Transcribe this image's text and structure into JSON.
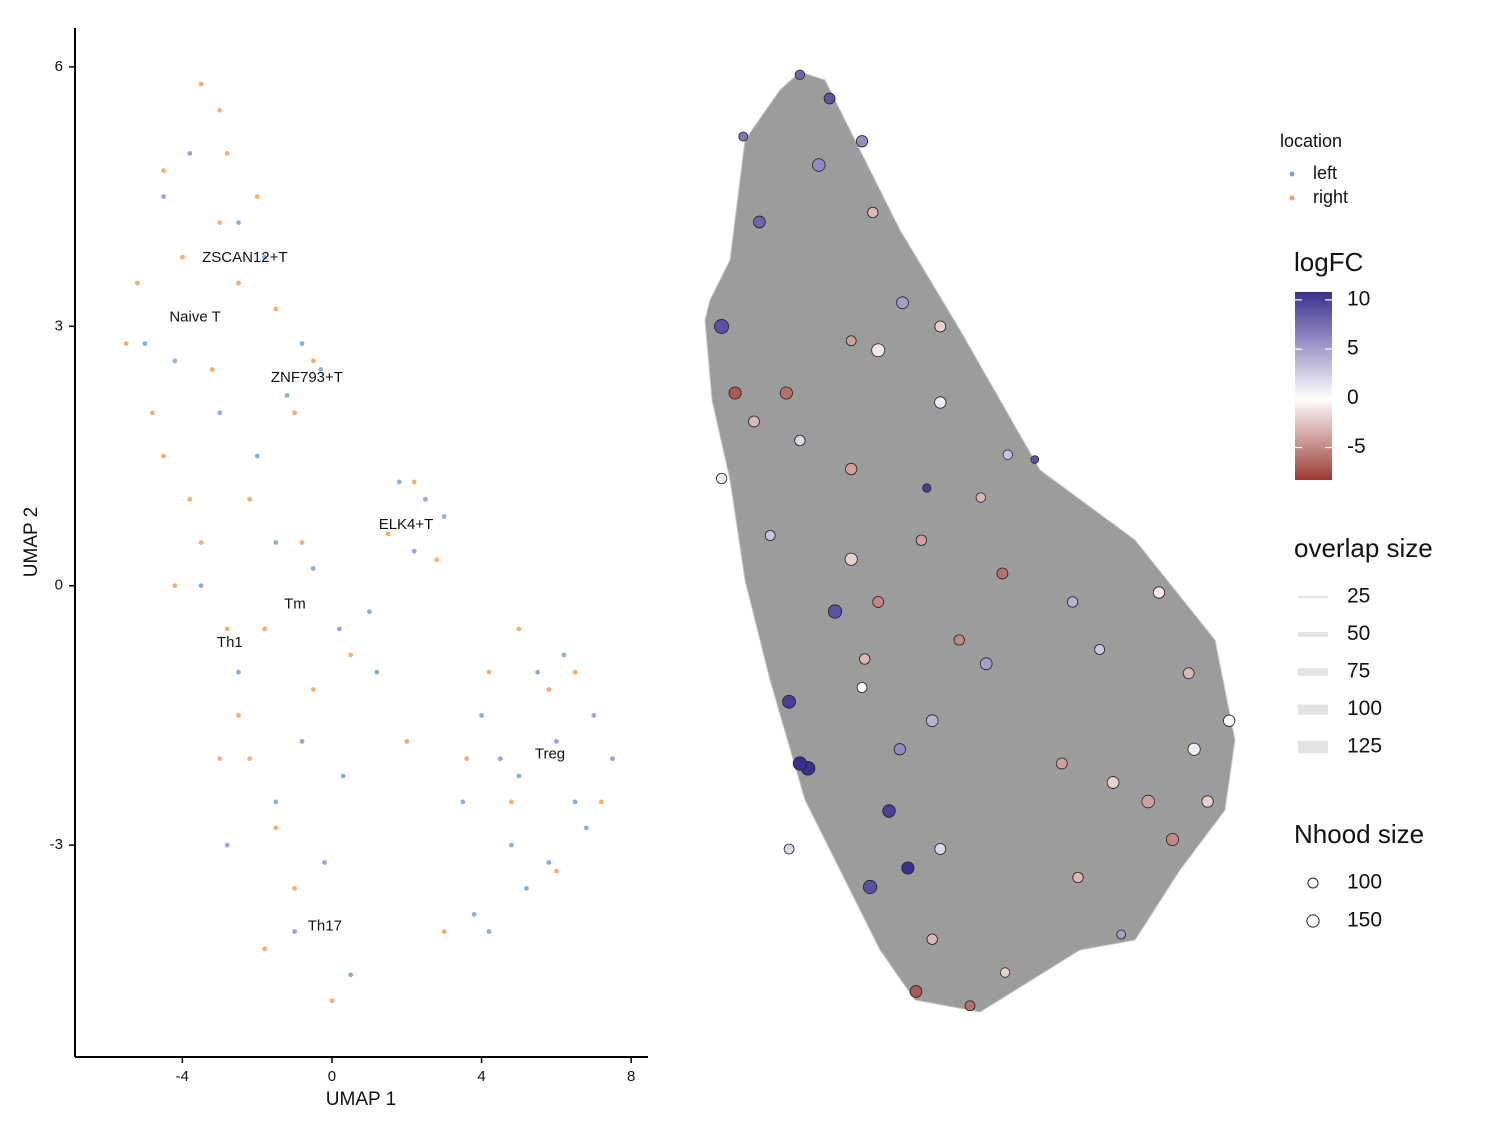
{
  "chart_data": [
    {
      "type": "scatter",
      "x_label": "UMAP 1",
      "y_label": "UMAP 2",
      "xlim": [
        -6.87,
        8.45
      ],
      "ylim": [
        -5.45,
        6.45
      ],
      "xticks": [
        -4,
        0,
        4,
        8
      ],
      "yticks": [
        -3,
        0,
        3,
        6
      ],
      "legend_title": "location",
      "series": [
        {
          "name": "left",
          "color": "#7b9fd4",
          "x": [
            -4.5,
            -3.8,
            -2.5,
            -1.8,
            -0.8,
            -0.3,
            -1.2,
            -2.0,
            -3.0,
            -4.2,
            -5.0,
            -1.5,
            -0.5,
            0.2,
            1.0,
            1.8,
            2.5,
            2.2,
            3.0,
            1.2,
            4.0,
            4.5,
            5.0,
            5.5,
            6.0,
            6.5,
            7.0,
            7.5,
            4.8,
            5.8,
            6.8,
            3.8,
            4.2,
            5.2,
            6.2,
            3.5,
            -0.2,
            0.5,
            -1.0,
            -1.5,
            -0.8,
            0.3,
            -2.5,
            -3.5,
            -2.8
          ],
          "values": [
            4.5,
            5.0,
            4.2,
            3.8,
            2.8,
            2.5,
            2.2,
            1.5,
            2.0,
            2.6,
            2.8,
            0.5,
            0.2,
            -0.5,
            -0.3,
            1.2,
            1.0,
            0.4,
            0.8,
            -1.0,
            -1.5,
            -2.0,
            -2.2,
            -1.0,
            -1.8,
            -2.5,
            -1.5,
            -2.0,
            -3.0,
            -3.2,
            -2.8,
            -3.8,
            -4.0,
            -3.5,
            -0.8,
            -2.5,
            -3.2,
            -4.5,
            -4.0,
            -2.5,
            -1.8,
            -2.2,
            -1.0,
            0.0,
            -3.0
          ]
        },
        {
          "name": "right",
          "color": "#f5a05a",
          "x": [
            -3.5,
            -3.0,
            -2.8,
            -4.5,
            -5.2,
            -5.5,
            -4.0,
            -2.0,
            -1.5,
            -2.5,
            -3.2,
            -4.8,
            -3.8,
            -2.2,
            -1.0,
            -0.5,
            -3.5,
            -4.2,
            -2.8,
            -1.8,
            -0.8,
            -2.5,
            -3.0,
            -1.5,
            -0.5,
            0.5,
            -1.0,
            -1.8,
            0.0,
            1.5,
            2.2,
            2.8,
            5.0,
            5.8,
            6.5,
            4.2,
            3.6,
            7.2,
            4.8,
            3.0,
            2.0,
            6.0,
            -2.2,
            -4.5,
            -3.0
          ],
          "values": [
            5.8,
            5.5,
            5.0,
            4.8,
            3.5,
            2.8,
            3.8,
            4.5,
            3.2,
            3.5,
            2.5,
            2.0,
            1.0,
            1.0,
            2.0,
            2.6,
            0.5,
            0.0,
            -0.5,
            -0.5,
            0.5,
            -1.5,
            -2.0,
            -2.8,
            -1.2,
            -0.8,
            -3.5,
            -4.2,
            -4.8,
            0.6,
            1.2,
            0.3,
            -0.5,
            -1.2,
            -1.0,
            -1.0,
            -2.0,
            -2.5,
            -2.5,
            -4.0,
            -1.8,
            -3.3,
            -2.0,
            1.5,
            4.2
          ]
        }
      ],
      "annotations": [
        {
          "text": "ZSCAN12+T",
          "x": -2.33,
          "y": 3.79
        },
        {
          "text": "Naive T",
          "x": -3.66,
          "y": 3.1
        },
        {
          "text": "ZNF793+T",
          "x": -0.67,
          "y": 2.4
        },
        {
          "text": "ELK4+T",
          "x": 1.98,
          "y": 0.7
        },
        {
          "text": "Tm",
          "x": -0.99,
          "y": -0.22
        },
        {
          "text": "Th1",
          "x": -2.73,
          "y": -0.66
        },
        {
          "text": "Treg",
          "x": 5.83,
          "y": -1.95
        },
        {
          "text": "Th17",
          "x": -0.19,
          "y": -3.94
        }
      ]
    },
    {
      "type": "graph",
      "x": [
        18.5,
        24,
        8,
        22,
        11,
        4,
        6.5,
        18.5,
        28,
        42,
        52,
        62,
        13,
        28,
        56,
        25,
        30.5,
        16.5,
        20,
        37,
        30,
        35,
        38.5,
        31.5,
        44.5,
        43,
        50,
        40,
        56.5,
        69,
        74,
        85,
        91.5,
        98,
        90.5,
        83,
        76.5,
        87.5,
        70,
        78,
        67,
        94,
        48,
        53,
        44.5,
        33,
        37.5,
        32,
        30,
        28,
        16,
        10,
        4,
        44.5,
        57,
        41,
        33,
        43,
        18.5,
        16.5
      ],
      "y": [
        0.5,
        3,
        7,
        10,
        16,
        27,
        34,
        39,
        42,
        44,
        45,
        41,
        49,
        51.5,
        53,
        57,
        62,
        66.5,
        73.5,
        71.5,
        65,
        78,
        84,
        86,
        82,
        91.5,
        98.5,
        97,
        95,
        56,
        61,
        55,
        71.5,
        68.5,
        63.5,
        77,
        75,
        81,
        85,
        91,
        73,
        77,
        60,
        62.5,
        27,
        29.5,
        24.5,
        15,
        7.5,
        28.5,
        34,
        37,
        43,
        35,
        40.5,
        49.5,
        56,
        68.5,
        73,
        82
      ],
      "logFC": [
        8,
        9,
        7,
        6,
        8,
        9,
        -7,
        2,
        -4,
        10,
        -3,
        9,
        3,
        -2,
        -6,
        9,
        -3,
        10,
        11,
        6,
        0,
        10,
        11,
        9,
        2,
        -3,
        -6,
        -7,
        -2,
        4,
        3,
        -1,
        1,
        0,
        -3,
        -4,
        -2,
        -5,
        -3,
        5,
        -4,
        -2,
        -5,
        5,
        -2,
        -1,
        5,
        -3,
        6,
        -4,
        -6,
        -3,
        1,
        1,
        3,
        -4,
        -5,
        4,
        11,
        2
      ],
      "nhood_size": [
        90,
        120,
        80,
        160,
        140,
        200,
        150,
        110,
        130,
        70,
        90,
        60,
        100,
        150,
        120,
        180,
        110,
        170,
        190,
        130,
        100,
        160,
        150,
        180,
        120,
        110,
        100,
        140,
        90,
        110,
        100,
        130,
        150,
        130,
        120,
        160,
        140,
        150,
        110,
        80,
        120,
        130,
        110,
        140,
        120,
        170,
        140,
        110,
        130,
        100,
        150,
        120,
        110,
        130,
        90,
        110,
        120,
        140,
        180,
        100
      ],
      "colorbar": {
        "title": "logFC",
        "lim": [
          -8.3,
          10.8
        ],
        "ticks": [
          10,
          5,
          0,
          -5
        ],
        "colors": [
          "#9b3a35",
          "#ffffff",
          "#3b2f8f"
        ]
      },
      "edge_legend": {
        "title": "overlap size",
        "values": [
          25,
          50,
          75,
          100,
          125
        ],
        "color": "#e3e3e3"
      },
      "size_legend": {
        "title": "Nhood size",
        "values": [
          100,
          150
        ]
      }
    }
  ]
}
